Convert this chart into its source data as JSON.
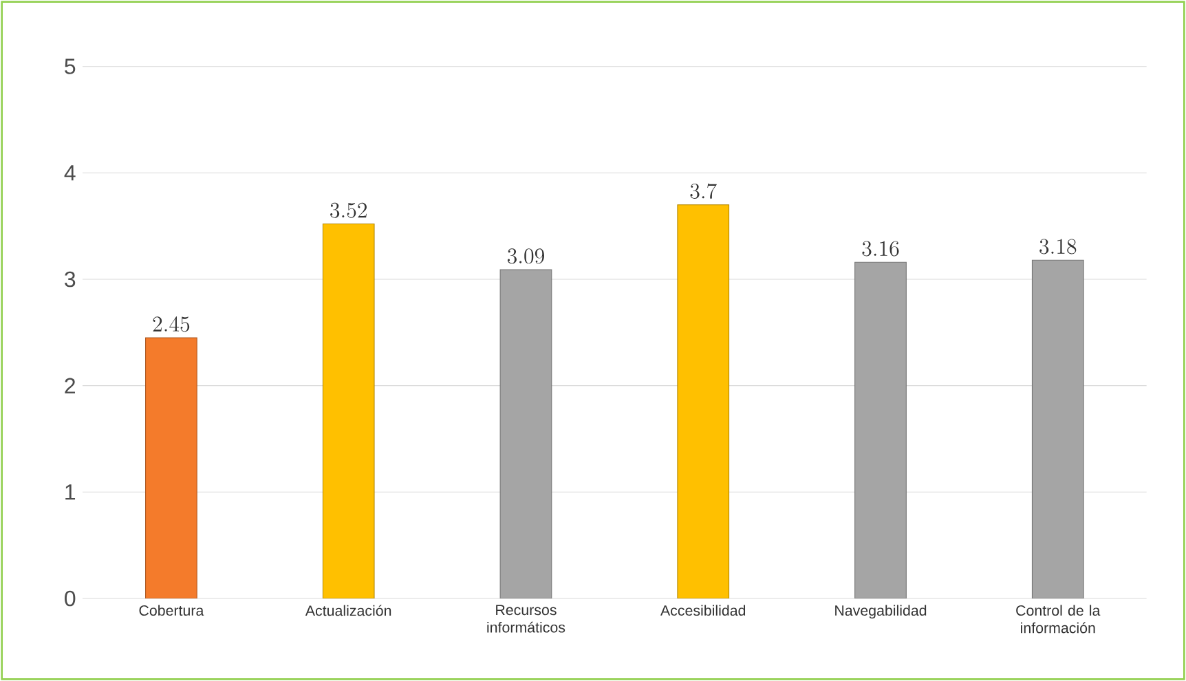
{
  "chart_data": {
    "type": "bar",
    "categories": [
      "Cobertura",
      "Actualización",
      "Recursos informáticos",
      "Accesibilidad",
      "Navegabilidad",
      "Control de la información"
    ],
    "values": [
      2.45,
      3.52,
      3.09,
      3.7,
      3.16,
      3.18
    ],
    "colors": [
      "#f47b2b",
      "#ffc000",
      "#a5a5a5",
      "#ffc000",
      "#a5a5a5",
      "#a5a5a5"
    ],
    "ylim": [
      0,
      5
    ],
    "yticks": [
      0,
      1,
      2,
      3,
      4,
      5
    ],
    "grid": "y",
    "data_labels": true
  }
}
